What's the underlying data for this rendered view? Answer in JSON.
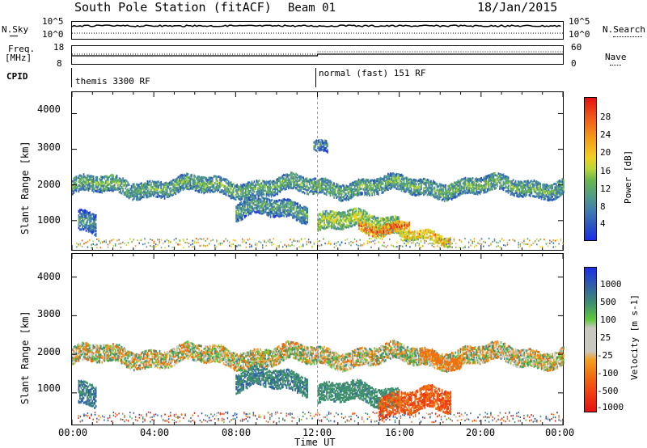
{
  "header": {
    "station": "South Pole Station (fitACF)",
    "beam": "Beam 01",
    "date": "18/Jan/2015"
  },
  "top_panels": {
    "nsky_label": "N.Sky",
    "nsky_ticks": [
      "10^5",
      "10^0"
    ],
    "nsearch_label": "N.Search",
    "freq_label_1": "Freq.",
    "freq_label_2": "[MHz]",
    "freq_ticks": [
      "18",
      "8"
    ],
    "nave_ticks": [
      "60",
      "0"
    ],
    "nave_label": "Nave",
    "cpid_label": "CPID",
    "cpid_segments": [
      "themis 3300 RF",
      "normal (fast) 151 RF"
    ]
  },
  "panels": {
    "ylabel": "Slant Range [km]",
    "yticks": [
      "4000",
      "3000",
      "2000",
      "1000"
    ],
    "xticks": [
      "00:00",
      "04:00",
      "08:00",
      "12:00",
      "16:00",
      "20:00",
      "00:00"
    ],
    "xlabel": "Time UT"
  },
  "chart_data": [
    {
      "type": "heatmap",
      "quantity": "power",
      "xlabel": "Time UT",
      "ylabel": "Slant Range [km]",
      "xlim": [
        "00:00",
        "24:00"
      ],
      "ylim": [
        180,
        4600
      ],
      "colorbar": {
        "label": "Power [dB]",
        "ticks": [
          4,
          8,
          12,
          16,
          20,
          24,
          28
        ],
        "range": [
          0,
          32
        ],
        "colors": [
          "#1a2ee8",
          "#2a55c0",
          "#3f7ab0",
          "#4f9a8a",
          "#68b64e",
          "#b8d63a",
          "#f0d020",
          "#f39a1a",
          "#ef5a1a",
          "#e31212"
        ]
      },
      "bands": [
        {
          "t_start": 0.0,
          "t_end": 24.0,
          "range_center": 2000,
          "range_width": 450,
          "power": 14
        },
        {
          "t_start": 0.3,
          "t_end": 1.2,
          "range_center": 900,
          "range_width": 600,
          "power": 12
        },
        {
          "t_start": 8.0,
          "t_end": 11.5,
          "range_center": 1350,
          "range_width": 500,
          "power": 13
        },
        {
          "t_start": 12.0,
          "t_end": 16.0,
          "range_center": 1000,
          "range_width": 500,
          "power": 18
        },
        {
          "t_start": 14.0,
          "t_end": 16.5,
          "range_center": 900,
          "range_width": 300,
          "power": 26
        },
        {
          "t_start": 16.0,
          "t_end": 18.5,
          "range_center": 550,
          "range_width": 250,
          "power": 22
        },
        {
          "t_start": 11.8,
          "t_end": 12.5,
          "range_center": 3100,
          "range_width": 300,
          "power": 10
        }
      ]
    },
    {
      "type": "heatmap",
      "quantity": "velocity",
      "xlabel": "Time UT",
      "ylabel": "Slant Range [km]",
      "xlim": [
        "00:00",
        "24:00"
      ],
      "ylim": [
        180,
        4600
      ],
      "colorbar": {
        "label": "Velocity [m s-1]",
        "ticks": [
          1000,
          500,
          100,
          25,
          -25,
          -100,
          -500,
          -1000
        ],
        "colors": [
          "#1a2ee8",
          "#2e5ea8",
          "#3f8f6f",
          "#5ec93c",
          "#c8c8c0",
          "#c8c8c0",
          "#f2a020",
          "#f07010",
          "#ef3a12",
          "#e31212"
        ]
      },
      "bands": [
        {
          "t_start": 0.0,
          "t_end": 24.0,
          "range_center": 2000,
          "range_width": 450,
          "velocity": 0
        },
        {
          "t_start": 0.3,
          "t_end": 1.2,
          "range_center": 900,
          "range_width": 600,
          "velocity": 300
        },
        {
          "t_start": 8.0,
          "t_end": 11.5,
          "range_center": 1350,
          "range_width": 500,
          "velocity": 250
        },
        {
          "t_start": 12.0,
          "t_end": 16.0,
          "range_center": 1000,
          "range_width": 500,
          "velocity": 200
        },
        {
          "t_start": 15.0,
          "t_end": 18.5,
          "range_center": 800,
          "range_width": 600,
          "velocity": -300
        },
        {
          "t_start": 17.0,
          "t_end": 19.0,
          "range_center": 1900,
          "range_width": 300,
          "velocity": -120
        }
      ]
    }
  ]
}
